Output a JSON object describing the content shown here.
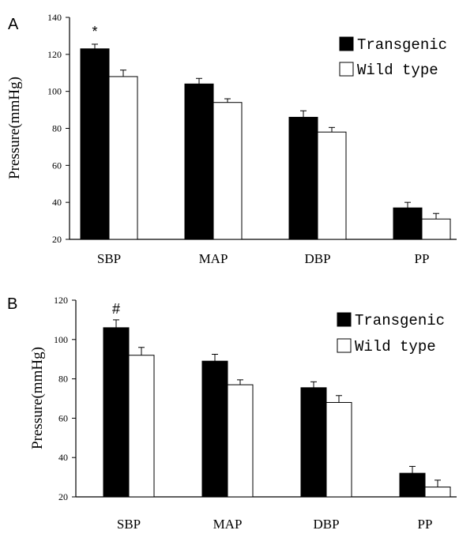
{
  "chart_data": [
    {
      "panel_label": "A",
      "type": "bar",
      "categories": [
        "SBP",
        "MAP",
        "DBP",
        "PP"
      ],
      "series": [
        {
          "name": "Transgenic",
          "values": [
            123,
            104,
            86,
            37
          ],
          "errors": [
            2.5,
            3,
            3.5,
            3
          ],
          "color": "#000000"
        },
        {
          "name": "Wild type",
          "values": [
            108,
            94,
            78,
            31
          ],
          "errors": [
            3.5,
            2,
            2.5,
            3
          ],
          "color": "#ffffff"
        }
      ],
      "ylabel": "Pressure(mmHg)",
      "ylim": [
        20,
        140
      ],
      "yticks": [
        20,
        40,
        60,
        80,
        100,
        120,
        140
      ],
      "annotations": [
        {
          "text": "*",
          "category": "SBP"
        }
      ],
      "legend": "top-right",
      "grid": false
    },
    {
      "panel_label": "B",
      "type": "bar",
      "categories": [
        "SBP",
        "MAP",
        "DBP",
        "PP"
      ],
      "series": [
        {
          "name": "Transgenic",
          "values": [
            106,
            89,
            75.5,
            32
          ],
          "errors": [
            4,
            3.5,
            3,
            3.5
          ],
          "color": "#000000"
        },
        {
          "name": "Wild type",
          "values": [
            92,
            77,
            68,
            25
          ],
          "errors": [
            4,
            2.5,
            3.5,
            3.5
          ],
          "color": "#ffffff"
        }
      ],
      "ylabel": "Pressure(mmHg)",
      "ylim": [
        20,
        120
      ],
      "yticks": [
        20,
        40,
        60,
        80,
        100,
        120
      ],
      "annotations": [
        {
          "text": "#",
          "category": "SBP"
        }
      ],
      "legend": "top-right",
      "grid": false
    }
  ]
}
